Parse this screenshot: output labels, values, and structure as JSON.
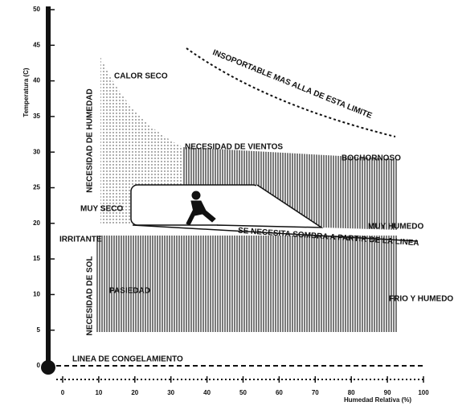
{
  "chart_data": {
    "type": "bioclimatic",
    "y_label": "Temperatura (C)",
    "x_label": "Humedad Relativa (%)",
    "xlim": [
      0,
      100
    ],
    "xticks": [
      0,
      10,
      20,
      30,
      40,
      50,
      60,
      70,
      80,
      90,
      100
    ],
    "ylim": [
      0,
      50
    ],
    "yticks": [
      0,
      5,
      10,
      15,
      20,
      25,
      30,
      35,
      40,
      45,
      50
    ],
    "annotations": [
      "CALOR SECO",
      "INSOPORTABLE MAS ALLA DE ESTA LIMITE",
      "NECESIDAD DE HUMEDAD",
      "NECESIDAD DE VIENTOS",
      "BOCHORNOSO",
      "MUY SECO",
      "MUY HUMEDO",
      "IRRITANTE",
      "SE NECESITA SOMBRA A PARTIR DE LA LINEA",
      "NECESIDAD DE SOL",
      "PASIEDAD",
      "FRIO Y HUMEDO",
      "LINEA DE CONGELAMIENTO"
    ]
  }
}
